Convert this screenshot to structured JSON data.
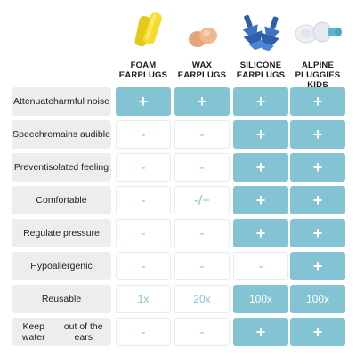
{
  "colors": {
    "accent": "#84c3d3",
    "label_bg": "#ededf0",
    "muted_text": "#8ec3d0"
  },
  "columns": [
    {
      "header_line1": "FOAM",
      "header_line2": "EARPLUGS",
      "image": "yellow-foam-earplugs"
    },
    {
      "header_line1": "WAX",
      "header_line2": "EARPLUGS",
      "image": "orange-wax-earplugs"
    },
    {
      "header_line1": "SILICONE",
      "header_line2": "EARPLUGS",
      "image": "blue-silicone-earplugs"
    },
    {
      "header_line1": "ALPINE",
      "header_line2": "PLUGGIES KIDS",
      "image": "white-alpine-earplugs"
    }
  ],
  "rows": [
    {
      "label_line1": "Attenuate",
      "label_line2": "harmful noise",
      "cells": [
        {
          "text": "+",
          "filled": true
        },
        {
          "text": "+",
          "filled": true
        },
        {
          "text": "+",
          "filled": true
        },
        {
          "text": "+",
          "filled": true
        }
      ]
    },
    {
      "label_line1": "Speech",
      "label_line2": "remains audible",
      "cells": [
        {
          "text": "-",
          "filled": false
        },
        {
          "text": "-",
          "filled": false
        },
        {
          "text": "+",
          "filled": true
        },
        {
          "text": "+",
          "filled": true
        }
      ]
    },
    {
      "label_line1": "Prevent",
      "label_line2": "isolated feeling",
      "cells": [
        {
          "text": "-",
          "filled": false
        },
        {
          "text": "-",
          "filled": false
        },
        {
          "text": "+",
          "filled": true
        },
        {
          "text": "+",
          "filled": true
        }
      ]
    },
    {
      "label_line1": "Comfortable",
      "label_line2": "",
      "cells": [
        {
          "text": "-",
          "filled": false
        },
        {
          "text": "-/+",
          "filled": false
        },
        {
          "text": "+",
          "filled": true
        },
        {
          "text": "+",
          "filled": true
        }
      ]
    },
    {
      "label_line1": "Regulate pressure",
      "label_line2": "",
      "cells": [
        {
          "text": "-",
          "filled": false
        },
        {
          "text": "-",
          "filled": false
        },
        {
          "text": "+",
          "filled": true
        },
        {
          "text": "+",
          "filled": true
        }
      ]
    },
    {
      "label_line1": "Hypoallergenic",
      "label_line2": "",
      "cells": [
        {
          "text": "-",
          "filled": false
        },
        {
          "text": "-",
          "filled": false
        },
        {
          "text": "-",
          "filled": false
        },
        {
          "text": "+",
          "filled": true
        }
      ]
    },
    {
      "label_line1": "Reusable",
      "label_line2": "",
      "cells": [
        {
          "text": "1x",
          "filled": false
        },
        {
          "text": "20x",
          "filled": false
        },
        {
          "text": "100x",
          "filled": true
        },
        {
          "text": "100x",
          "filled": true
        }
      ]
    },
    {
      "label_line1": "Keep water",
      "label_line2": "out of the ears",
      "cells": [
        {
          "text": "-",
          "filled": false
        },
        {
          "text": "-",
          "filled": false
        },
        {
          "text": "+",
          "filled": true
        },
        {
          "text": "+",
          "filled": true
        }
      ]
    }
  ]
}
